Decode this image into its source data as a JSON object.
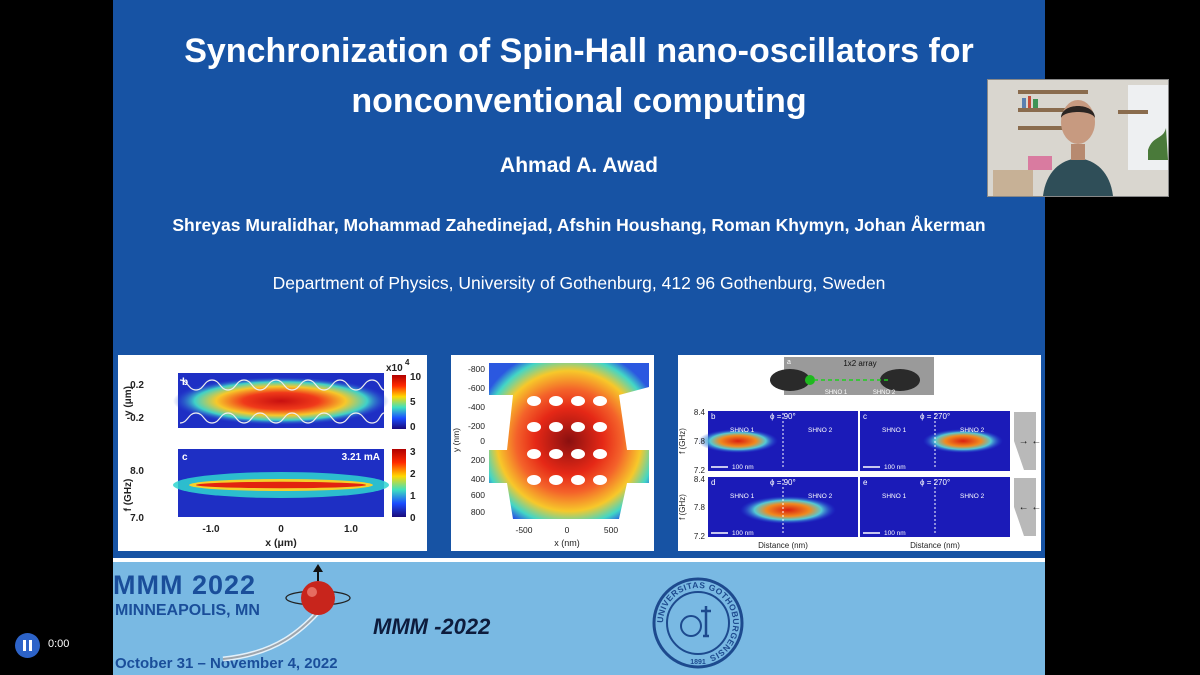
{
  "slide": {
    "title_line1": "Synchronization of Spin-Hall nano-oscillators for",
    "title_line2": "nonconventional computing",
    "author": "Ahmad A. Awad",
    "coauthors": "Shreyas Muralidhar, Mohammad Zahedinejad,  Afshin Houshang, Roman Khymyn, Johan Åkerman",
    "affiliation": "Department of Physics, University of Gothenburg, 412 96 Gothenburg, Sweden"
  },
  "figure1": {
    "panel_b_label": "b",
    "panel_c_label": "c",
    "b_ylabel": "y (μm)",
    "b_yticks": [
      "0.2",
      "-0.2"
    ],
    "b_cbar_title": "x10",
    "b_cbar_exp": "4",
    "b_cbar_ticks": [
      "10",
      "5",
      "0"
    ],
    "c_ylabel": "f (GHz)",
    "c_yticks": [
      "8.0",
      "7.0"
    ],
    "c_current": "3.21 mA",
    "c_cbar_ticks": [
      "3",
      "2",
      "1",
      "0"
    ],
    "xticks": [
      "-1.0",
      "0",
      "1.0"
    ],
    "xlabel": "x (μm)"
  },
  "figure2": {
    "ylabel": "y (nm)",
    "yticks": [
      "-800",
      "-600",
      "-400",
      "-200",
      "0",
      "200",
      "400",
      "600",
      "800"
    ],
    "xticks": [
      "-500",
      "0",
      "500"
    ],
    "xlabel": "x (nm)",
    "panel_label": "p"
  },
  "figure3": {
    "panel_a_label": "a",
    "array_label": "1x2 array",
    "shno1": "SHNO 1",
    "shno2": "SHNO 2",
    "ylabel": "f (GHz)",
    "yticks_top": [
      "8.4",
      "7.8",
      "7.2"
    ],
    "yticks_bottom": [
      "8.4",
      "7.8",
      "7.2"
    ],
    "panels": [
      {
        "label": "b",
        "phase": "ϕ = 90°"
      },
      {
        "label": "c",
        "phase": "ϕ = 270°"
      },
      {
        "label": "d",
        "phase": "ϕ = 90°"
      },
      {
        "label": "e",
        "phase": "ϕ = 270°"
      }
    ],
    "scale": "100 nm",
    "xlabel": "Distance (nm)",
    "arrows_top": "→ ←",
    "arrows_bottom": "← ←"
  },
  "banner": {
    "logo_text": "MMM 2022",
    "city": "MINNEAPOLIS, MN",
    "dates": "October 31 – November 4, 2022",
    "conference": "MMM -2022",
    "seal_text": "UNIVERSITAS GOTHOBURGENSIS",
    "seal_year": "1891"
  },
  "player": {
    "time": "0:00",
    "pause_icon": "pause-icon"
  },
  "colors": {
    "slide_bg": "#1753a4",
    "banner_bg": "#79b9e3",
    "logo_blue": "#1a4e9a",
    "player_button": "#2d63c8"
  }
}
